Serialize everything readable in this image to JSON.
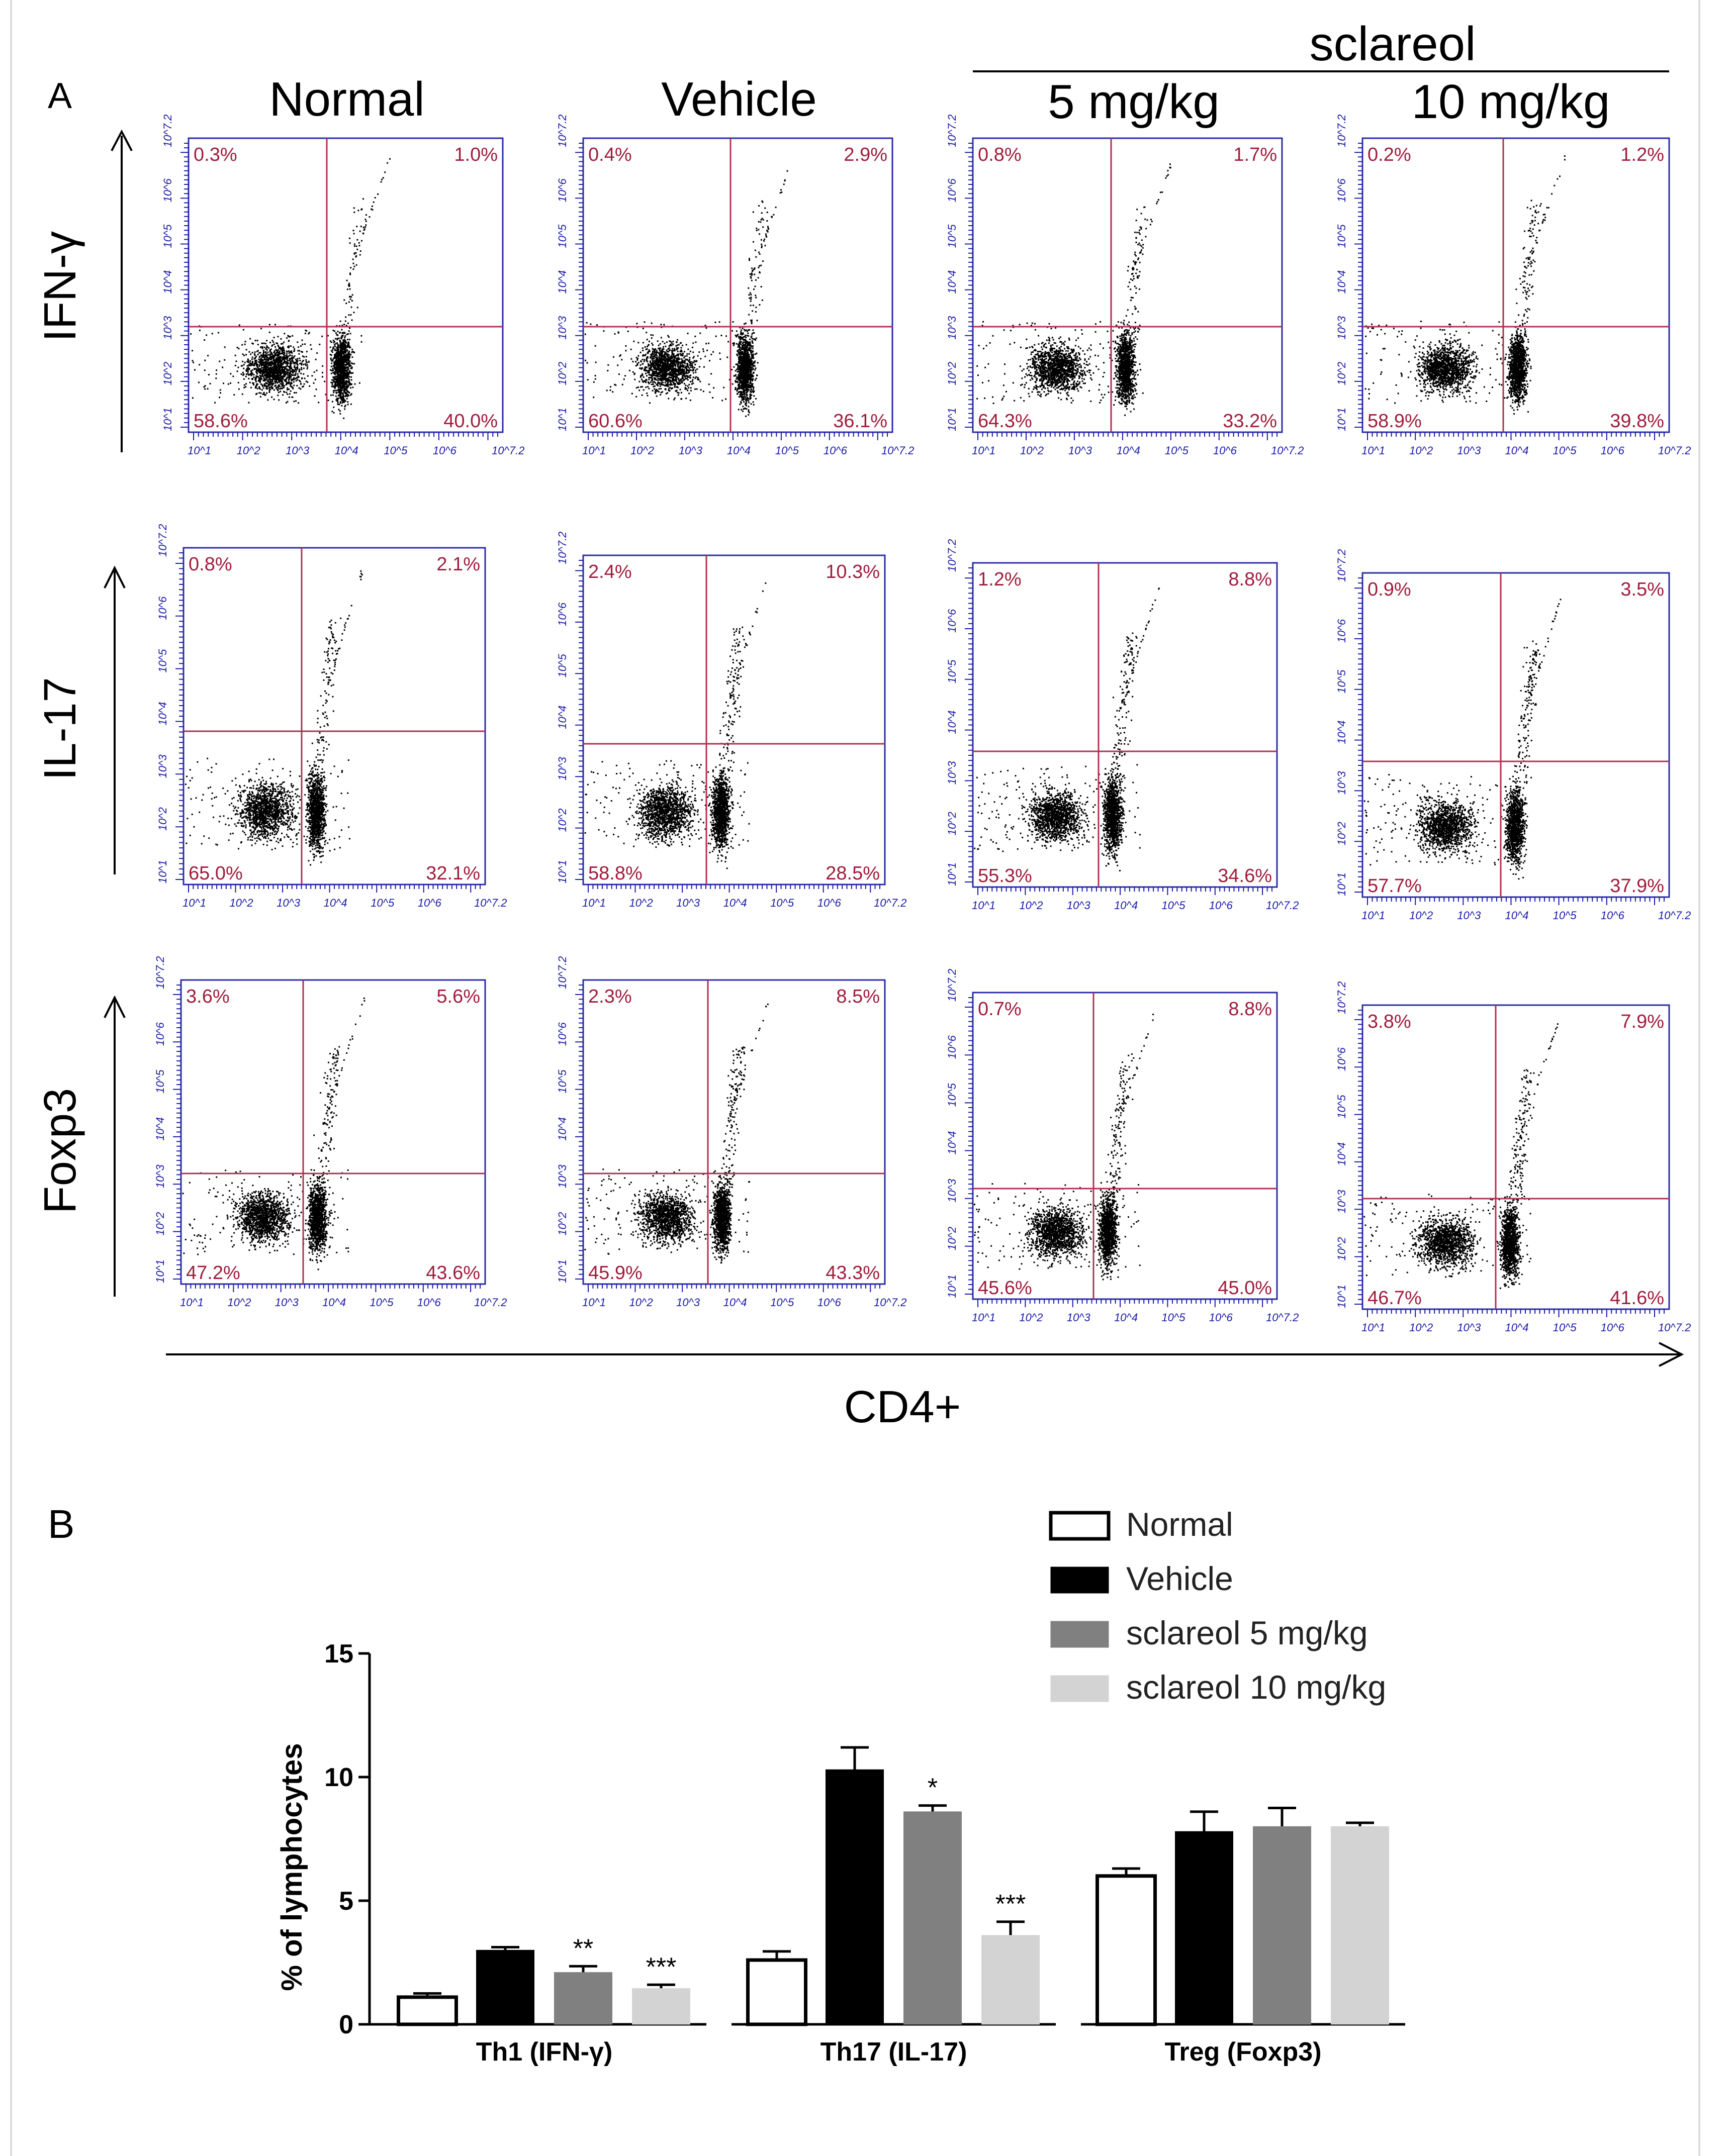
{
  "panel_a": {
    "label": "A",
    "group_header": "sclareol",
    "columns": [
      "Normal",
      "Vehicle",
      "5 mg/kg",
      "10 mg/kg"
    ],
    "rows": [
      "IFN-γ",
      "IL-17",
      "Foxp3"
    ],
    "x_axis_label": "CD4+",
    "tick_labels": [
      "10^1",
      "10^2",
      "10^3",
      "10^4",
      "10^5",
      "10^6",
      "10^7.2"
    ],
    "quadrants": [
      [
        {
          "ul": "0.3%",
          "ur": "1.0%",
          "ll": "58.6%",
          "lr": "40.0%"
        },
        {
          "ul": "0.4%",
          "ur": "2.9%",
          "ll": "60.6%",
          "lr": "36.1%"
        },
        {
          "ul": "0.8%",
          "ur": "1.7%",
          "ll": "64.3%",
          "lr": "33.2%"
        },
        {
          "ul": "0.2%",
          "ur": "1.2%",
          "ll": "58.9%",
          "lr": "39.8%"
        }
      ],
      [
        {
          "ul": "0.8%",
          "ur": "2.1%",
          "ll": "65.0%",
          "lr": "32.1%"
        },
        {
          "ul": "2.4%",
          "ur": "10.3%",
          "ll": "58.8%",
          "lr": "28.5%"
        },
        {
          "ul": "1.2%",
          "ur": "8.8%",
          "ll": "55.3%",
          "lr": "34.6%"
        },
        {
          "ul": "0.9%",
          "ur": "3.5%",
          "ll": "57.7%",
          "lr": "37.9%"
        }
      ],
      [
        {
          "ul": "3.6%",
          "ur": "5.6%",
          "ll": "47.2%",
          "lr": "43.6%"
        },
        {
          "ul": "2.3%",
          "ur": "8.5%",
          "ll": "45.9%",
          "lr": "43.3%"
        },
        {
          "ul": "0.7%",
          "ur": "8.8%",
          "ll": "45.6%",
          "lr": "45.0%"
        },
        {
          "ul": "3.8%",
          "ur": "7.9%",
          "ll": "46.7%",
          "lr": "41.6%"
        }
      ]
    ]
  },
  "panel_b": {
    "label": "B"
  },
  "chart_data": {
    "type": "bar",
    "title": "",
    "xlabel": "",
    "ylabel": "% of lymphocytes",
    "ylim": [
      0,
      15
    ],
    "yticks": [
      0,
      5,
      10,
      15
    ],
    "categories": [
      "Th1 (IFN-γ)",
      "Th17 (IL-17)",
      "Treg (Foxp3)"
    ],
    "legend_position": "top-right",
    "series": [
      {
        "name": "Normal",
        "color": "#ffffff",
        "values": [
          1.1,
          2.6,
          6.0
        ],
        "errors": [
          0.15,
          0.35,
          0.3
        ],
        "significance": [
          "",
          "",
          ""
        ]
      },
      {
        "name": "Vehicle",
        "color": "#000000",
        "values": [
          3.0,
          10.3,
          7.8
        ],
        "errors": [
          0.12,
          0.9,
          0.8
        ],
        "significance": [
          "",
          "",
          ""
        ]
      },
      {
        "name": "sclareol 5 mg/kg",
        "color": "#808080",
        "values": [
          2.1,
          8.6,
          8.0
        ],
        "errors": [
          0.25,
          0.25,
          0.75
        ],
        "significance": [
          "**",
          "*",
          ""
        ]
      },
      {
        "name": "sclareol 10 mg/kg",
        "color": "#d3d3d3",
        "values": [
          1.45,
          3.6,
          8.0
        ],
        "errors": [
          0.15,
          0.55,
          0.15
        ],
        "significance": [
          "***",
          "***",
          ""
        ]
      }
    ]
  }
}
